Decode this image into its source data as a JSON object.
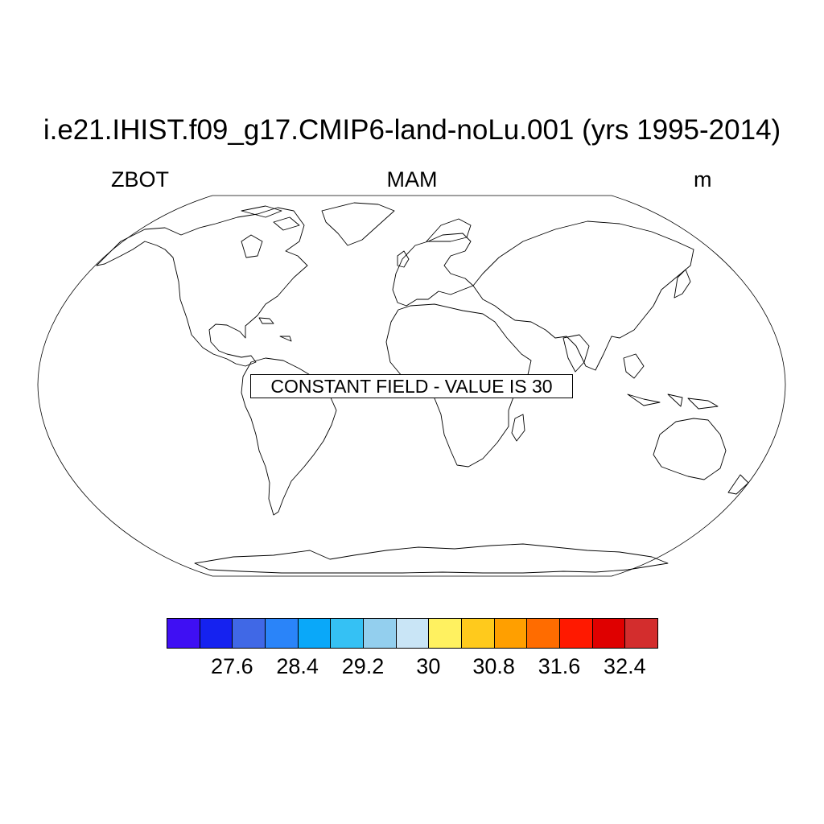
{
  "title": "i.e21.IHIST.f09_g17.CMIP6-land-noLu.001 (yrs 1995-2014)",
  "left_string": "ZBOT",
  "center_string": "MAM",
  "right_string": "m",
  "map": {
    "projection": "Robinson",
    "annotation": "CONSTANT FIELD - VALUE IS 30",
    "field_value": 30
  },
  "colorbar": {
    "colors": [
      "#3f0ff3",
      "#1522f0",
      "#4068e6",
      "#2a84f9",
      "#0aa8f9",
      "#35c1f4",
      "#93cfee",
      "#c9e5f6",
      "#fff160",
      "#ffca1c",
      "#ff9f00",
      "#ff6c00",
      "#ff1900",
      "#df0000",
      "#d32d2d"
    ],
    "labels": [
      "27.6",
      "28.4",
      "29.2",
      "30",
      "30.8",
      "31.6",
      "32.4"
    ]
  }
}
